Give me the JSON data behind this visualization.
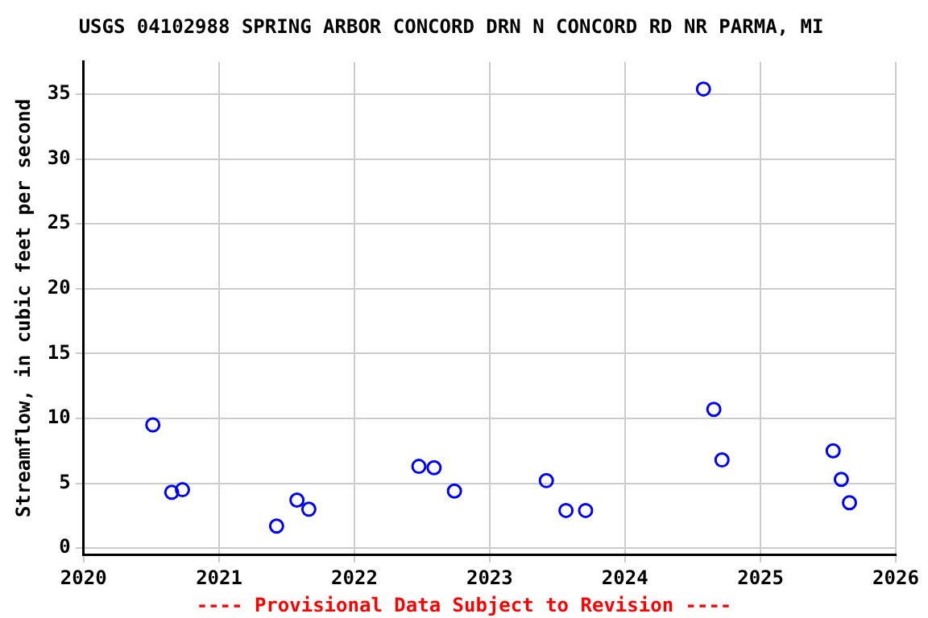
{
  "chart_data": {
    "type": "scatter",
    "title": "USGS 04102988 SPRING ARBOR CONCORD DRN N CONCORD RD NR PARMA, MI",
    "ylabel": "Streamflow, in cubic feet per second",
    "annotations": [
      "---- Provisional Data Subject to Revision ----"
    ],
    "x": [
      "2020-07-06",
      "2020-08-26",
      "2020-09-24",
      "2021-06-05",
      "2021-07-30",
      "2021-08-31",
      "2022-06-24",
      "2022-08-04",
      "2022-09-28",
      "2023-06-03",
      "2023-07-26",
      "2023-09-17",
      "2024-07-31",
      "2024-08-28",
      "2024-09-19",
      "2025-07-16",
      "2025-08-07",
      "2025-08-29"
    ],
    "series": [
      {
        "color": "#0000ff",
        "values": [
          9.5,
          4.3,
          4.5,
          1.7,
          3.7,
          3.0,
          6.3,
          6.2,
          4.4,
          5.2,
          2.9,
          2.9,
          35.4,
          10.7,
          6.8,
          7.5,
          5.3,
          3.5
        ]
      }
    ],
    "xlim": [
      "2020",
      "2026"
    ],
    "xticks": [
      "2020",
      "2021",
      "2022",
      "2023",
      "2024",
      "2025",
      "2026"
    ],
    "ylim": [
      -0.5,
      37.5
    ],
    "yticks": [
      0,
      5,
      10,
      15,
      20,
      25,
      30,
      35
    ],
    "grid": true,
    "legend": false,
    "marker": "circle"
  }
}
